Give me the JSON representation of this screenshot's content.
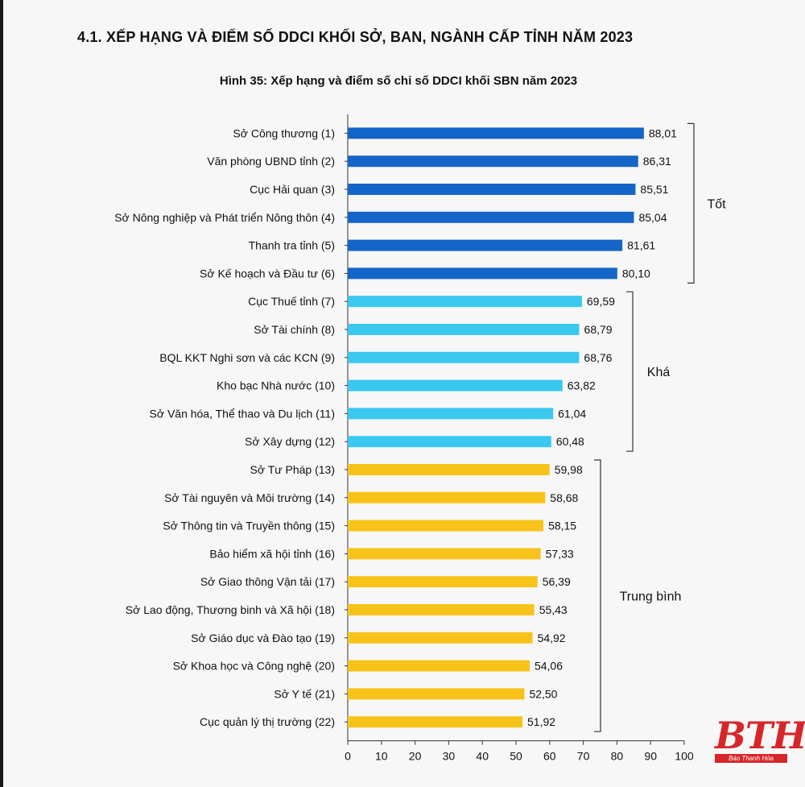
{
  "section_title": "4.1. XẾP HẠNG VÀ ĐIỂM SỐ DDCI KHỐI SỞ, BAN, NGÀNH CẤP TỈNH NĂM 2023",
  "logo": {
    "text": "BTH",
    "subtitle": "Báo Thanh Hóa"
  },
  "colors": {
    "tot": "#1565c8",
    "kha": "#3ac8f0",
    "trung_binh": "#f7c31a"
  },
  "chart_data": {
    "type": "bar",
    "orientation": "horizontal",
    "title": "Hình 35: Xếp hạng và điểm số chỉ số DDCI khối SBN năm 2023",
    "xlabel": "",
    "ylabel": "",
    "xlim": [
      0,
      100
    ],
    "xticks": [
      0,
      10,
      20,
      30,
      40,
      50,
      60,
      70,
      80,
      90,
      100
    ],
    "categories": [
      "Sở Công thương (1)",
      "Văn phòng UBND tỉnh (2)",
      "Cục Hải quan (3)",
      "Sở Nông nghiệp và Phát triển Nông thôn (4)",
      "Thanh tra tỉnh (5)",
      "Sở Kế hoạch và Đầu tư (6)",
      "Cục Thuế tỉnh (7)",
      "Sở Tài chính (8)",
      "BQL KKT Nghi sơn và các KCN (9)",
      "Kho bạc Nhà nước (10)",
      "Sở Văn hóa, Thể thao và Du lịch (11)",
      "Sở Xây dựng (12)",
      "Sở Tư Pháp (13)",
      "Sở Tài nguyên và Môi trường (14)",
      "Sở Thông tin và Truyền thông (15)",
      "Bảo hiểm xã hội tỉnh (16)",
      "Sở Giao thông Vận tải (17)",
      "Sở Lao động, Thương binh và Xã hội (18)",
      "Sở Giáo dục và Đào tạo (19)",
      "Sở Khoa học và Công nghệ (20)",
      "Sở Y tế (21)",
      "Cục quản lý thị trường (22)"
    ],
    "values": [
      88.01,
      86.31,
      85.51,
      85.04,
      81.61,
      80.1,
      69.59,
      68.79,
      68.76,
      63.82,
      61.04,
      60.48,
      59.98,
      58.68,
      58.15,
      57.33,
      56.39,
      55.43,
      54.92,
      54.06,
      52.5,
      51.92
    ],
    "value_labels": [
      "88,01",
      "86,31",
      "85,51",
      "85,04",
      "81,61",
      "80,10",
      "69,59",
      "68,79",
      "68,76",
      "63,82",
      "61,04",
      "60,48",
      "59,98",
      "58,68",
      "58,15",
      "57,33",
      "56,39",
      "55,43",
      "54,92",
      "54,06",
      "52,50",
      "51,92"
    ],
    "groups": [
      {
        "name": "Tốt",
        "start": 0,
        "end": 5,
        "color_key": "tot"
      },
      {
        "name": "Khá",
        "start": 6,
        "end": 11,
        "color_key": "kha"
      },
      {
        "name": "Trung bình",
        "start": 12,
        "end": 21,
        "color_key": "trung_binh"
      }
    ]
  }
}
